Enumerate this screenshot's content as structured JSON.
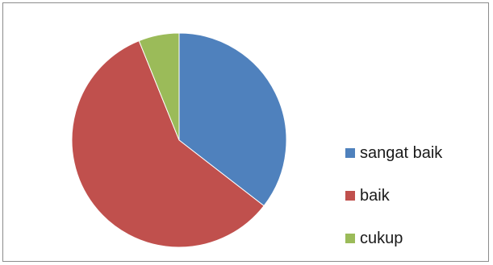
{
  "chart_data": {
    "type": "pie",
    "categories": [
      "sangat baik",
      "baik",
      "cukup"
    ],
    "values": [
      35.5,
      58.4,
      6.1
    ],
    "colors": [
      "#4F81BD",
      "#C0504D",
      "#9BBB59"
    ],
    "legend_position": "right",
    "title": ""
  }
}
